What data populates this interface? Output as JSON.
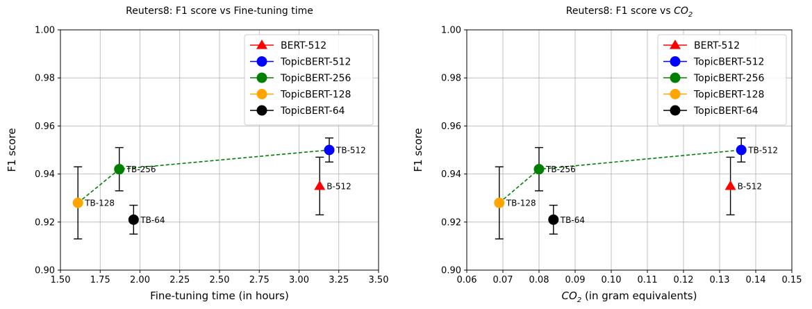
{
  "chart_data": [
    {
      "type": "scatter",
      "title": "Reuters8: F1 score vs Fine-tuning time",
      "xlabel": "Fine-tuning time (in hours)",
      "ylabel": "F1 score",
      "xlim": [
        1.5,
        3.5
      ],
      "ylim": [
        0.9,
        1.0
      ],
      "xticks": [
        "1.50",
        "1.75",
        "2.00",
        "2.25",
        "2.50",
        "2.75",
        "3.00",
        "3.25",
        "3.50"
      ],
      "yticks": [
        "0.90",
        "0.92",
        "0.94",
        "0.96",
        "0.98",
        "1.00"
      ],
      "grid": true,
      "legend_position": "top-right",
      "series": [
        {
          "name": "BERT-512",
          "label": "B-512",
          "x": 3.13,
          "y": 0.935,
          "yerr_low": 0.923,
          "yerr_high": 0.947,
          "color": "#ff0000",
          "marker": "triangle"
        },
        {
          "name": "TopicBERT-512",
          "label": "TB-512",
          "x": 3.19,
          "y": 0.95,
          "yerr_low": 0.945,
          "yerr_high": 0.955,
          "color": "#0000ff",
          "marker": "circle"
        },
        {
          "name": "TopicBERT-256",
          "label": "TB-256",
          "x": 1.87,
          "y": 0.942,
          "yerr_low": 0.933,
          "yerr_high": 0.951,
          "color": "#008000",
          "marker": "circle"
        },
        {
          "name": "TopicBERT-128",
          "label": "TB-128",
          "x": 1.61,
          "y": 0.928,
          "yerr_low": 0.913,
          "yerr_high": 0.943,
          "color": "#ffa500",
          "marker": "circle"
        },
        {
          "name": "TopicBERT-64",
          "label": "TB-64",
          "x": 1.96,
          "y": 0.921,
          "yerr_low": 0.915,
          "yerr_high": 0.927,
          "color": "#000000",
          "marker": "circle"
        }
      ],
      "trend_line": {
        "points": [
          [
            1.61,
            0.928
          ],
          [
            1.87,
            0.942
          ],
          [
            3.19,
            0.95
          ]
        ],
        "color": "#008000",
        "style": "dashed"
      }
    },
    {
      "type": "scatter",
      "title": "Reuters8: F1 score vs CO",
      "title_sub": "2",
      "xlabel": "CO",
      "xlabel_sub": "2",
      "xlabel_rest": " (in gram equivalents)",
      "ylabel": "F1 score",
      "xlim": [
        0.06,
        0.15
      ],
      "ylim": [
        0.9,
        1.0
      ],
      "xticks": [
        "0.06",
        "0.07",
        "0.08",
        "0.09",
        "0.10",
        "0.11",
        "0.12",
        "0.13",
        "0.14",
        "0.15"
      ],
      "yticks": [
        "0.90",
        "0.92",
        "0.94",
        "0.96",
        "0.98",
        "1.00"
      ],
      "grid": true,
      "legend_position": "top-right",
      "series": [
        {
          "name": "BERT-512",
          "label": "B-512",
          "x": 0.133,
          "y": 0.935,
          "yerr_low": 0.923,
          "yerr_high": 0.947,
          "color": "#ff0000",
          "marker": "triangle"
        },
        {
          "name": "TopicBERT-512",
          "label": "TB-512",
          "x": 0.136,
          "y": 0.95,
          "yerr_low": 0.945,
          "yerr_high": 0.955,
          "color": "#0000ff",
          "marker": "circle"
        },
        {
          "name": "TopicBERT-256",
          "label": "TB-256",
          "x": 0.08,
          "y": 0.942,
          "yerr_low": 0.933,
          "yerr_high": 0.951,
          "color": "#008000",
          "marker": "circle"
        },
        {
          "name": "TopicBERT-128",
          "label": "TB-128",
          "x": 0.069,
          "y": 0.928,
          "yerr_low": 0.913,
          "yerr_high": 0.943,
          "color": "#ffa500",
          "marker": "circle"
        },
        {
          "name": "TopicBERT-64",
          "label": "TB-64",
          "x": 0.084,
          "y": 0.921,
          "yerr_low": 0.915,
          "yerr_high": 0.927,
          "color": "#000000",
          "marker": "circle"
        }
      ],
      "trend_line": {
        "points": [
          [
            0.069,
            0.928
          ],
          [
            0.08,
            0.942
          ],
          [
            0.136,
            0.95
          ]
        ],
        "color": "#008000",
        "style": "dashed"
      }
    }
  ]
}
